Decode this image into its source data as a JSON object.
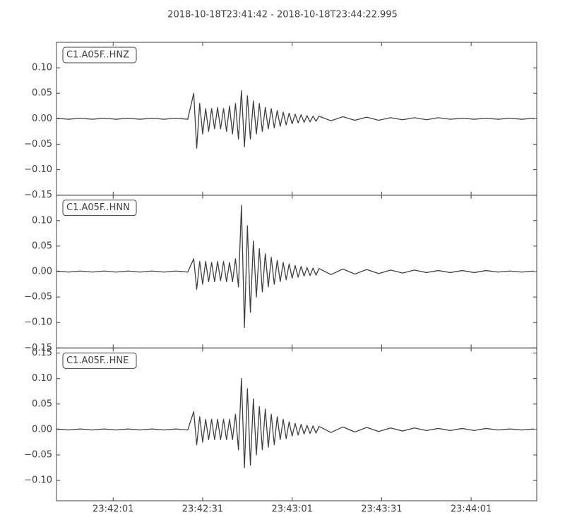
{
  "title": "2018-10-18T23:41:42  -  2018-10-18T23:44:22.995",
  "chart_data": [
    {
      "type": "line",
      "label": "C1.A05F..HNZ",
      "color": "#404040",
      "xlim": [
        "23:41:42",
        "23:44:22.995"
      ],
      "ylim": [
        -0.15,
        0.15
      ],
      "yticks": [
        {
          "value": -0.15,
          "label": "−0.15"
        },
        {
          "value": -0.1,
          "label": "−0.10"
        },
        {
          "value": -0.05,
          "label": "−0.05"
        },
        {
          "value": 0,
          "label": "0.00"
        },
        {
          "value": 0.05,
          "label": "0.05"
        },
        {
          "value": 0.1,
          "label": "0.10"
        }
      ],
      "x": [
        "23:41:42",
        "23:41:46",
        "23:41:50",
        "23:41:54",
        "23:41:58",
        "23:42:02",
        "23:42:06",
        "23:42:10",
        "23:42:14",
        "23:42:18",
        "23:42:22",
        "23:42:26",
        "23:42:28",
        "23:42:29",
        "23:42:30",
        "23:42:31",
        "23:42:32",
        "23:42:33",
        "23:42:34",
        "23:42:35",
        "23:42:36",
        "23:42:37",
        "23:42:38",
        "23:42:39",
        "23:42:40",
        "23:42:41",
        "23:42:42",
        "23:42:43",
        "23:42:44",
        "23:42:45",
        "23:42:46",
        "23:42:47",
        "23:42:48",
        "23:42:49",
        "23:42:50",
        "23:42:51",
        "23:42:52",
        "23:42:53",
        "23:42:54",
        "23:42:55",
        "23:42:56",
        "23:42:57",
        "23:42:58",
        "23:42:59",
        "23:43:00",
        "23:43:01",
        "23:43:02",
        "23:43:03",
        "23:43:04",
        "23:43:05",
        "23:43:06",
        "23:43:07",
        "23:43:08",
        "23:43:09",
        "23:43:10",
        "23:43:14",
        "23:43:18",
        "23:43:22",
        "23:43:26",
        "23:43:30",
        "23:43:34",
        "23:43:38",
        "23:43:42",
        "23:43:46",
        "23:43:50",
        "23:43:54",
        "23:43:58",
        "23:44:02",
        "23:44:06",
        "23:44:10",
        "23:44:14",
        "23:44:18",
        "23:44:22"
      ],
      "values": [
        0.001,
        -0.001,
        0.001,
        -0.001,
        0.001,
        -0.001,
        0.001,
        -0.001,
        0.001,
        -0.001,
        0.001,
        -0.001,
        0.05,
        -0.058,
        0.03,
        -0.03,
        0.02,
        -0.025,
        0.02,
        -0.02,
        0.022,
        -0.02,
        0.02,
        -0.025,
        0.025,
        -0.03,
        0.03,
        -0.04,
        0.055,
        -0.055,
        0.045,
        -0.04,
        0.035,
        -0.03,
        0.03,
        -0.025,
        0.022,
        -0.02,
        0.02,
        -0.018,
        0.016,
        -0.015,
        0.013,
        -0.012,
        0.011,
        -0.01,
        0.009,
        -0.008,
        0.008,
        -0.007,
        0.006,
        -0.006,
        0.005,
        -0.005,
        0.005,
        -0.004,
        0.004,
        -0.003,
        0.003,
        -0.003,
        0.002,
        -0.002,
        0.002,
        -0.002,
        0.002,
        -0.001,
        0.001,
        -0.001,
        0.001,
        -0.001,
        0.001,
        -0.001,
        0.001
      ]
    },
    {
      "type": "line",
      "label": "C1.A05F..HNN",
      "color": "#404040",
      "xlim": [
        "23:41:42",
        "23:44:22.995"
      ],
      "ylim": [
        -0.15,
        0.15
      ],
      "yticks": [
        {
          "value": -0.15,
          "label": "−0.15"
        },
        {
          "value": -0.1,
          "label": "−0.10"
        },
        {
          "value": -0.05,
          "label": "−0.05"
        },
        {
          "value": 0,
          "label": "0.00"
        },
        {
          "value": 0.05,
          "label": "0.05"
        },
        {
          "value": 0.1,
          "label": "0.10"
        }
      ],
      "x": [
        "23:41:42",
        "23:41:46",
        "23:41:50",
        "23:41:54",
        "23:41:58",
        "23:42:02",
        "23:42:06",
        "23:42:10",
        "23:42:14",
        "23:42:18",
        "23:42:22",
        "23:42:26",
        "23:42:28",
        "23:42:29",
        "23:42:30",
        "23:42:31",
        "23:42:32",
        "23:42:33",
        "23:42:34",
        "23:42:35",
        "23:42:36",
        "23:42:37",
        "23:42:38",
        "23:42:39",
        "23:42:40",
        "23:42:41",
        "23:42:42",
        "23:42:43",
        "23:42:44",
        "23:42:45",
        "23:42:46",
        "23:42:47",
        "23:42:48",
        "23:42:49",
        "23:42:50",
        "23:42:51",
        "23:42:52",
        "23:42:53",
        "23:42:54",
        "23:42:55",
        "23:42:56",
        "23:42:57",
        "23:42:58",
        "23:42:59",
        "23:43:00",
        "23:43:01",
        "23:43:02",
        "23:43:03",
        "23:43:04",
        "23:43:05",
        "23:43:06",
        "23:43:07",
        "23:43:08",
        "23:43:09",
        "23:43:10",
        "23:43:14",
        "23:43:18",
        "23:43:22",
        "23:43:26",
        "23:43:30",
        "23:43:34",
        "23:43:38",
        "23:43:42",
        "23:43:46",
        "23:43:50",
        "23:43:54",
        "23:43:58",
        "23:44:02",
        "23:44:06",
        "23:44:10",
        "23:44:14",
        "23:44:18",
        "23:44:22"
      ],
      "values": [
        0.001,
        -0.001,
        0.001,
        -0.001,
        0.001,
        -0.001,
        0.001,
        -0.001,
        0.001,
        -0.001,
        0.001,
        -0.001,
        0.025,
        -0.035,
        0.02,
        -0.025,
        0.02,
        -0.02,
        0.018,
        -0.02,
        0.02,
        -0.018,
        0.02,
        -0.02,
        0.018,
        -0.02,
        0.025,
        -0.03,
        0.13,
        -0.11,
        0.09,
        -0.08,
        0.06,
        -0.05,
        0.045,
        -0.04,
        0.035,
        -0.03,
        0.028,
        -0.025,
        0.022,
        -0.02,
        0.018,
        -0.016,
        0.015,
        -0.013,
        0.012,
        -0.011,
        0.01,
        -0.009,
        0.008,
        -0.008,
        0.007,
        -0.007,
        0.006,
        -0.006,
        0.005,
        -0.005,
        0.004,
        -0.004,
        0.003,
        -0.003,
        0.003,
        -0.002,
        0.002,
        -0.002,
        0.002,
        -0.002,
        0.002,
        -0.001,
        0.001,
        -0.001,
        0.001
      ]
    },
    {
      "type": "line",
      "label": "C1.A05F..HNE",
      "color": "#404040",
      "xlim": [
        "23:41:42",
        "23:44:22.995"
      ],
      "ylim": [
        -0.14,
        0.16
      ],
      "yticks": [
        {
          "value": -0.1,
          "label": "−0.10"
        },
        {
          "value": -0.05,
          "label": "−0.05"
        },
        {
          "value": 0,
          "label": "0.00"
        },
        {
          "value": 0.05,
          "label": "0.05"
        },
        {
          "value": 0.1,
          "label": "0.10"
        },
        {
          "value": 0.15,
          "label": "0.15"
        }
      ],
      "xticks": [
        "23:42:01",
        "23:42:31",
        "23:43:01",
        "23:43:31",
        "23:44:01"
      ],
      "x": [
        "23:41:42",
        "23:41:46",
        "23:41:50",
        "23:41:54",
        "23:41:58",
        "23:42:02",
        "23:42:06",
        "23:42:10",
        "23:42:14",
        "23:42:18",
        "23:42:22",
        "23:42:26",
        "23:42:28",
        "23:42:29",
        "23:42:30",
        "23:42:31",
        "23:42:32",
        "23:42:33",
        "23:42:34",
        "23:42:35",
        "23:42:36",
        "23:42:37",
        "23:42:38",
        "23:42:39",
        "23:42:40",
        "23:42:41",
        "23:42:42",
        "23:42:43",
        "23:42:44",
        "23:42:45",
        "23:42:46",
        "23:42:47",
        "23:42:48",
        "23:42:49",
        "23:42:50",
        "23:42:51",
        "23:42:52",
        "23:42:53",
        "23:42:54",
        "23:42:55",
        "23:42:56",
        "23:42:57",
        "23:42:58",
        "23:42:59",
        "23:43:00",
        "23:43:01",
        "23:43:02",
        "23:43:03",
        "23:43:04",
        "23:43:05",
        "23:43:06",
        "23:43:07",
        "23:43:08",
        "23:43:09",
        "23:43:10",
        "23:43:14",
        "23:43:18",
        "23:43:22",
        "23:43:26",
        "23:43:30",
        "23:43:34",
        "23:43:38",
        "23:43:42",
        "23:43:46",
        "23:43:50",
        "23:43:54",
        "23:43:58",
        "23:44:02",
        "23:44:06",
        "23:44:10",
        "23:44:14",
        "23:44:18",
        "23:44:22"
      ],
      "values": [
        0.001,
        -0.001,
        0.001,
        -0.001,
        0.001,
        -0.001,
        0.001,
        -0.001,
        0.001,
        -0.001,
        0.001,
        -0.001,
        0.035,
        -0.03,
        0.025,
        -0.025,
        0.02,
        -0.02,
        0.02,
        -0.02,
        0.02,
        -0.02,
        0.02,
        -0.02,
        0.02,
        -0.02,
        0.03,
        -0.04,
        0.1,
        -0.075,
        0.08,
        -0.07,
        0.06,
        -0.05,
        0.045,
        -0.04,
        0.04,
        -0.035,
        0.03,
        -0.03,
        0.025,
        -0.02,
        0.02,
        -0.018,
        0.015,
        -0.013,
        0.012,
        -0.011,
        0.01,
        -0.009,
        0.008,
        -0.008,
        0.007,
        -0.007,
        0.006,
        -0.006,
        0.005,
        -0.005,
        0.004,
        -0.004,
        0.003,
        -0.003,
        0.003,
        -0.002,
        0.002,
        -0.002,
        0.002,
        -0.002,
        0.002,
        -0.001,
        0.001,
        -0.001,
        0.001
      ]
    }
  ]
}
